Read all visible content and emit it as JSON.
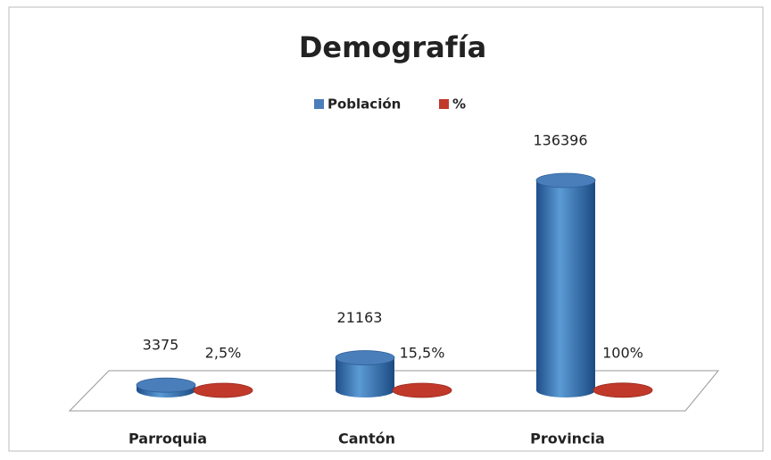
{
  "chart_data": {
    "type": "bar3d",
    "title": "Demografía",
    "categories": [
      "Parroquia",
      "Cantón",
      "Provincia"
    ],
    "series": [
      {
        "name": "Población",
        "color": "#4a7ebb",
        "values": [
          3375,
          21163,
          136396
        ]
      },
      {
        "name": "%",
        "color": "#c0392b",
        "values": [
          2.5,
          15.5,
          100
        ],
        "value_labels": [
          "2,5%",
          "15,5%",
          "100%"
        ]
      }
    ],
    "legend": "top"
  }
}
